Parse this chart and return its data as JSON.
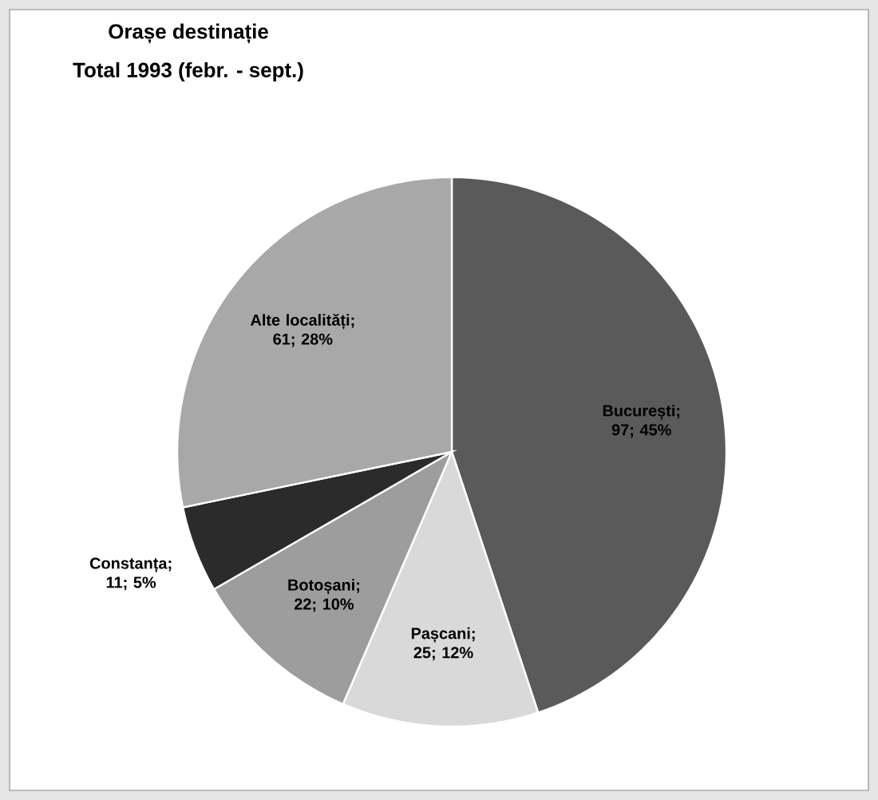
{
  "chart_data": {
    "type": "pie",
    "title": "Orașe destinație",
    "subtitle": "Total 1993 (febr. - sept.)",
    "categories": [
      "București; 97; 45%",
      "Pașcani; 25; 12%",
      "Botoșani; 22; 10%",
      "Constanța; 11; 5%",
      "Alte localități; 61; 28%"
    ],
    "values": [
      97,
      25,
      22,
      11,
      61
    ],
    "colors": [
      "#5a5a5a",
      "#d9d9d9",
      "#9d9d9d",
      "#2b2b2b",
      "#a8a8a8"
    ]
  }
}
